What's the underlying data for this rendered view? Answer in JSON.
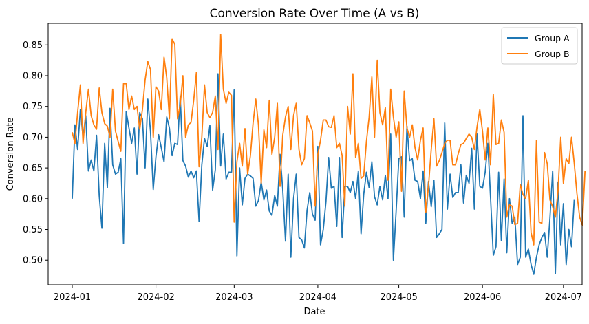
{
  "chart_data": {
    "type": "line",
    "title": "Conversion Rate Over Time (A vs B)",
    "xlabel": "Date",
    "ylabel": "Conversion Rate",
    "x_start": "2024-01-01",
    "x_end": "2024-06-29",
    "x_ticks": [
      "2024-01",
      "2024-02",
      "2024-03",
      "2024-04",
      "2024-05",
      "2024-06",
      "2024-07"
    ],
    "y_ticks": [
      0.5,
      0.55,
      0.6,
      0.65,
      0.7,
      0.75,
      0.8,
      0.85
    ],
    "ylim": [
      0.46,
      0.885
    ],
    "grid": false,
    "legend_position": "top-right",
    "series": [
      {
        "name": "Group A",
        "color": "#1f77b4",
        "values": [
          0.6,
          0.72,
          0.68,
          0.745,
          0.7,
          0.735,
          0.645,
          0.663,
          0.645,
          0.703,
          0.605,
          0.552,
          0.69,
          0.618,
          0.747,
          0.655,
          0.64,
          0.643,
          0.665,
          0.527,
          0.742,
          0.715,
          0.69,
          0.715,
          0.64,
          0.74,
          0.73,
          0.65,
          0.762,
          0.71,
          0.615,
          0.668,
          0.704,
          0.683,
          0.66,
          0.733,
          0.715,
          0.67,
          0.69,
          0.688,
          0.767,
          0.662,
          0.653,
          0.635,
          0.645,
          0.634,
          0.645,
          0.563,
          0.655,
          0.698,
          0.685,
          0.719,
          0.614,
          0.647,
          0.803,
          0.653,
          0.705,
          0.632,
          0.643,
          0.643,
          0.777,
          0.507,
          0.65,
          0.59,
          0.633,
          0.64,
          0.637,
          0.633,
          0.588,
          0.597,
          0.627,
          0.598,
          0.614,
          0.58,
          0.573,
          0.605,
          0.588,
          0.672,
          0.615,
          0.531,
          0.64,
          0.505,
          0.6,
          0.64,
          0.537,
          0.533,
          0.52,
          0.581,
          0.61,
          0.575,
          0.565,
          0.685,
          0.525,
          0.55,
          0.595,
          0.667,
          0.617,
          0.62,
          0.555,
          0.667,
          0.537,
          0.62,
          0.62,
          0.61,
          0.628,
          0.6,
          0.645,
          0.543,
          0.607,
          0.643,
          0.618,
          0.66,
          0.603,
          0.59,
          0.62,
          0.598,
          0.638,
          0.6,
          0.705,
          0.5,
          0.58,
          0.665,
          0.668,
          0.57,
          0.718,
          0.662,
          0.665,
          0.63,
          0.628,
          0.6,
          0.645,
          0.56,
          0.628,
          0.587,
          0.63,
          0.537,
          0.543,
          0.55,
          0.723,
          0.583,
          0.64,
          0.602,
          0.61,
          0.61,
          0.655,
          0.593,
          0.638,
          0.625,
          0.682,
          0.583,
          0.705,
          0.62,
          0.617,
          0.643,
          0.69,
          0.602,
          0.508,
          0.522,
          0.643,
          0.532,
          0.632,
          0.512,
          0.6,
          0.56,
          0.57,
          0.493,
          0.505,
          0.735,
          0.505,
          0.518,
          0.493,
          0.477,
          0.505,
          0.525,
          0.537,
          0.545,
          0.505,
          0.568,
          0.645,
          0.478,
          0.627,
          0.525,
          0.592,
          0.493,
          0.55,
          0.522,
          0.598
        ]
      },
      {
        "name": "Group B",
        "color": "#ff7f0e",
        "values": [
          0.708,
          0.69,
          0.74,
          0.785,
          0.69,
          0.74,
          0.778,
          0.735,
          0.72,
          0.713,
          0.78,
          0.74,
          0.722,
          0.718,
          0.7,
          0.778,
          0.71,
          0.693,
          0.677,
          0.787,
          0.787,
          0.745,
          0.767,
          0.745,
          0.75,
          0.713,
          0.745,
          0.793,
          0.823,
          0.81,
          0.7,
          0.782,
          0.775,
          0.745,
          0.83,
          0.797,
          0.73,
          0.86,
          0.851,
          0.73,
          0.752,
          0.8,
          0.7,
          0.72,
          0.724,
          0.76,
          0.805,
          0.652,
          0.7,
          0.785,
          0.74,
          0.732,
          0.74,
          0.767,
          0.68,
          0.867,
          0.778,
          0.755,
          0.773,
          0.768,
          0.562,
          0.66,
          0.69,
          0.653,
          0.714,
          0.64,
          0.67,
          0.723,
          0.762,
          0.72,
          0.625,
          0.712,
          0.683,
          0.76,
          0.672,
          0.7,
          0.755,
          0.62,
          0.703,
          0.733,
          0.75,
          0.68,
          0.735,
          0.755,
          0.68,
          0.655,
          0.665,
          0.735,
          0.723,
          0.71,
          0.588,
          0.672,
          0.695,
          0.728,
          0.728,
          0.717,
          0.716,
          0.735,
          0.683,
          0.69,
          0.67,
          0.588,
          0.75,
          0.705,
          0.803,
          0.667,
          0.69,
          0.633,
          0.637,
          0.693,
          0.732,
          0.798,
          0.7,
          0.825,
          0.74,
          0.72,
          0.748,
          0.63,
          0.778,
          0.733,
          0.7,
          0.725,
          0.612,
          0.775,
          0.715,
          0.7,
          0.72,
          0.683,
          0.663,
          0.695,
          0.715,
          0.578,
          0.62,
          0.68,
          0.73,
          0.653,
          0.662,
          0.675,
          0.69,
          0.695,
          0.695,
          0.655,
          0.655,
          0.673,
          0.688,
          0.69,
          0.698,
          0.705,
          0.7,
          0.68,
          0.717,
          0.745,
          0.71,
          0.663,
          0.715,
          0.655,
          0.77,
          0.688,
          0.69,
          0.728,
          0.708,
          0.57,
          0.59,
          0.588,
          0.558,
          0.56,
          0.623,
          0.607,
          0.6,
          0.63,
          0.545,
          0.525,
          0.695,
          0.562,
          0.56,
          0.675,
          0.657,
          0.598,
          0.587,
          0.57,
          0.613,
          0.7,
          0.625,
          0.665,
          0.657,
          0.7,
          0.658,
          0.608,
          0.57,
          0.557,
          0.645
        ]
      }
    ]
  }
}
